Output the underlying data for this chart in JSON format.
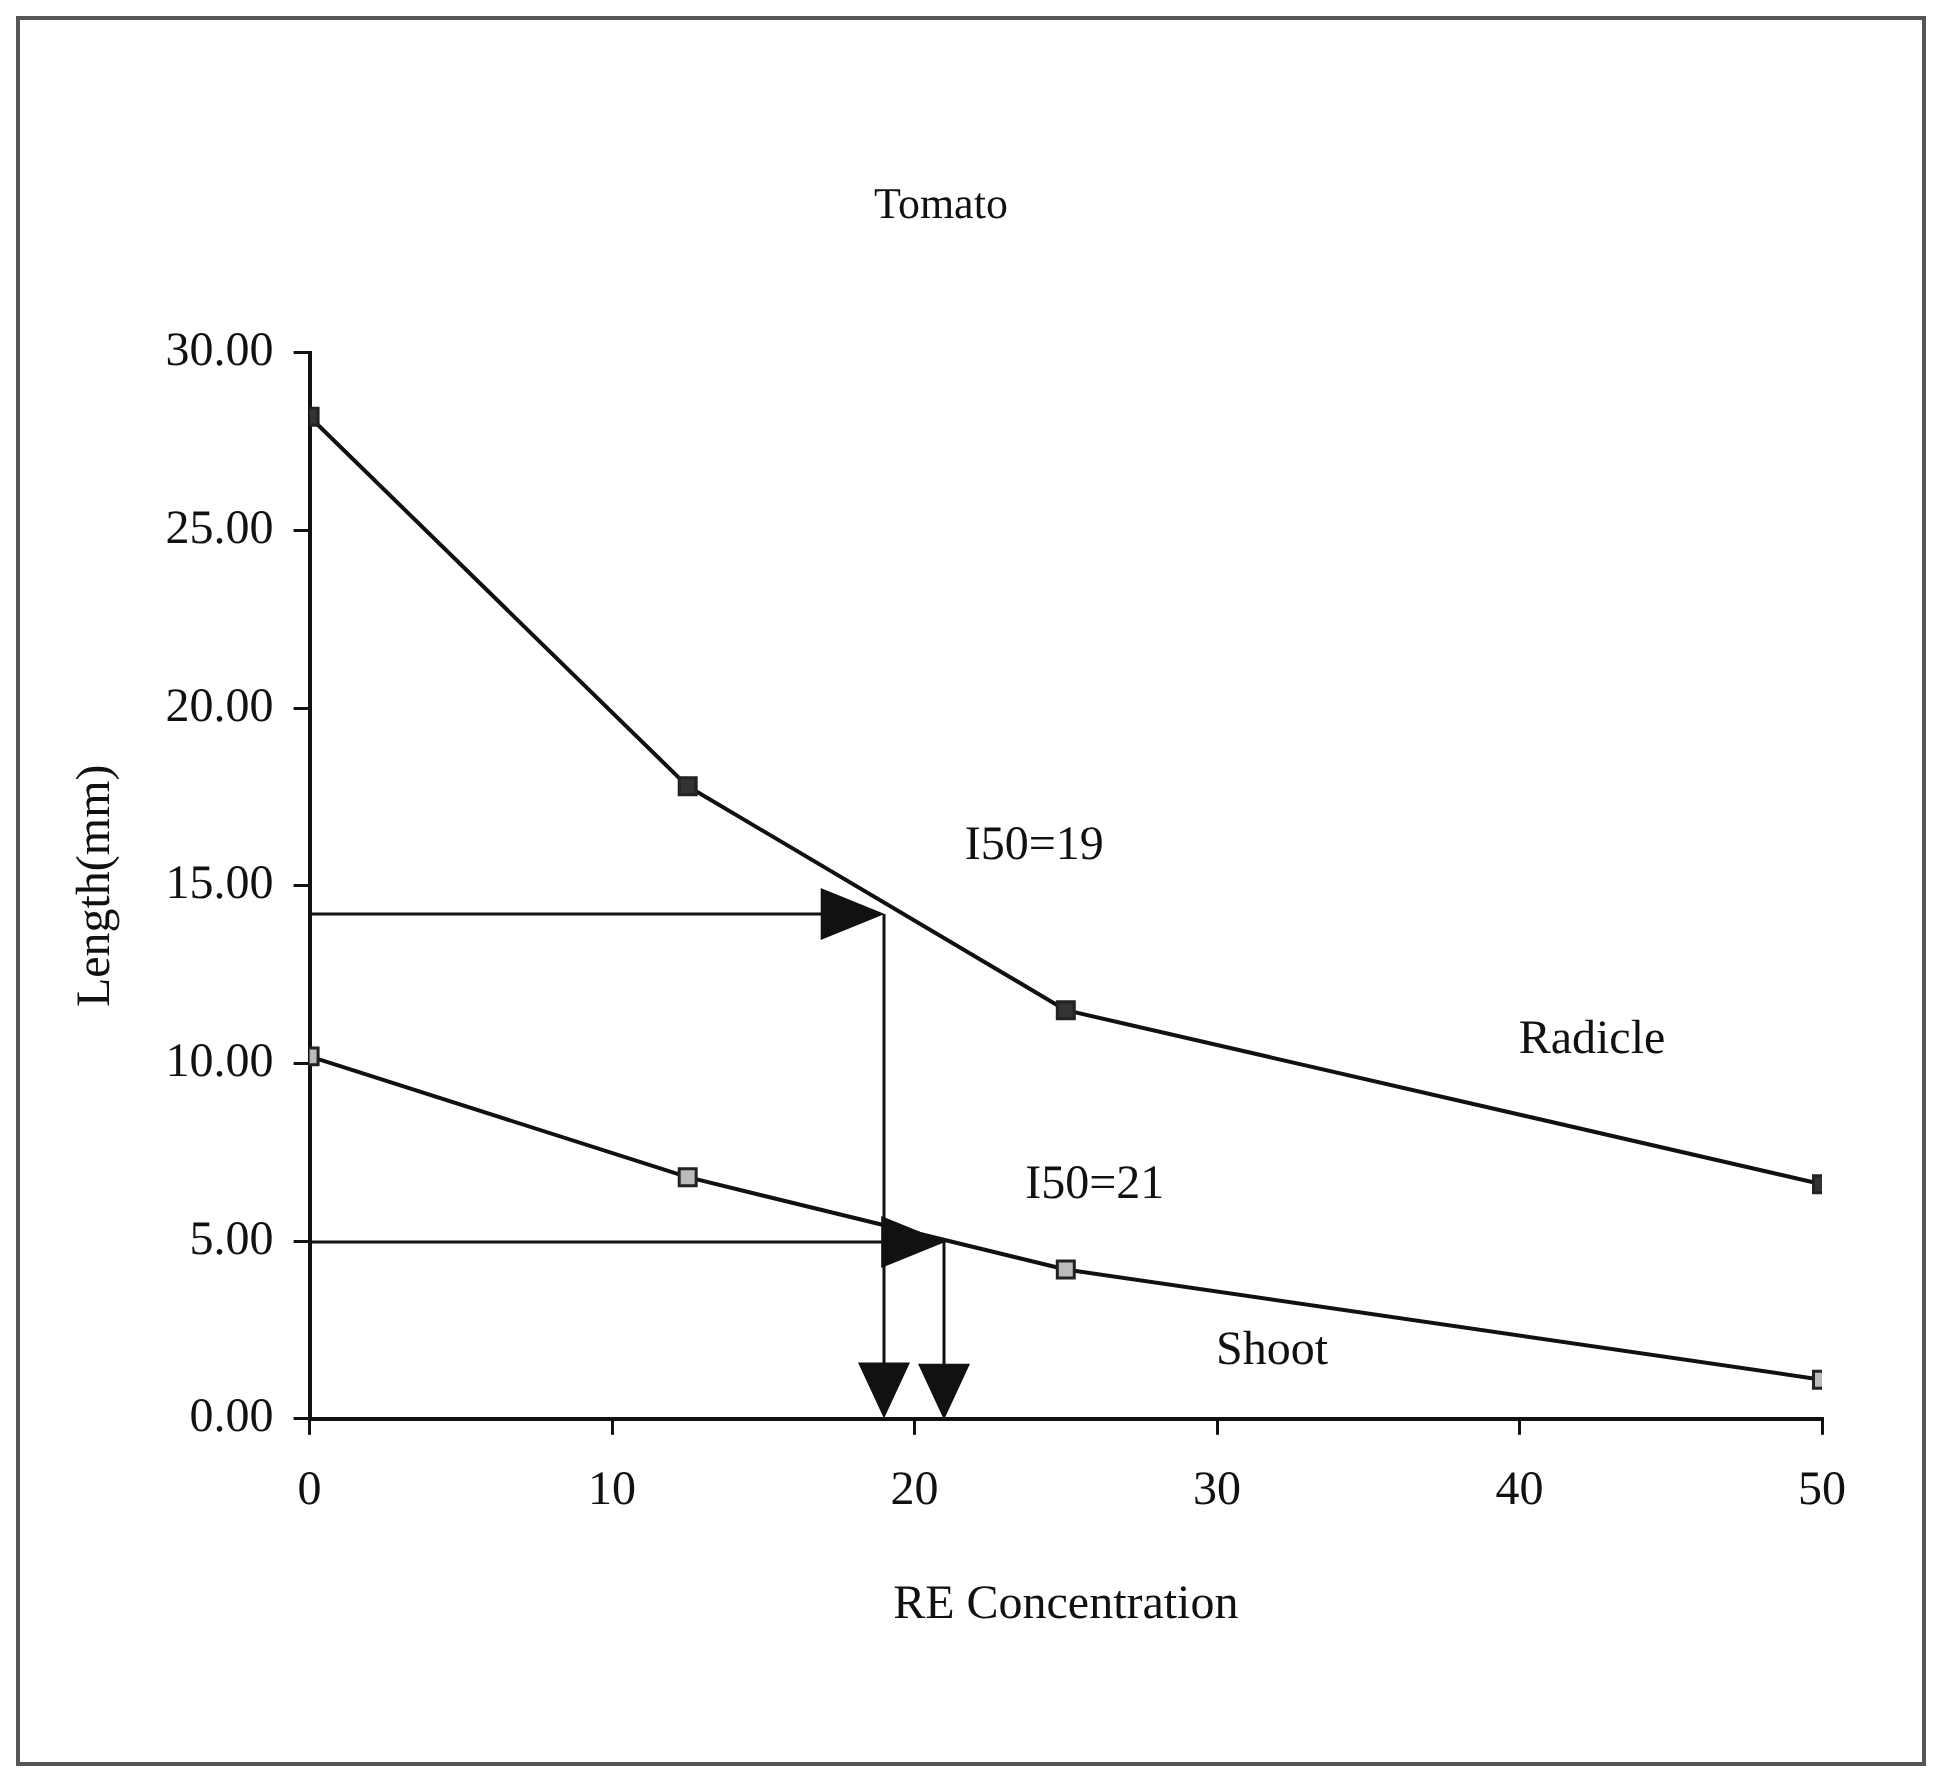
{
  "chart_data": {
    "type": "line",
    "title": "Tomato",
    "xlabel": "RE Concentration",
    "ylabel": "Length(mm)",
    "x": [
      0,
      12.5,
      25,
      50
    ],
    "series": [
      {
        "name": "Radicle",
        "color": "#333333",
        "values": [
          28.2,
          17.8,
          11.5,
          6.6
        ]
      },
      {
        "name": "Shoot",
        "color": "#bbbbbb",
        "values": [
          10.2,
          6.8,
          4.2,
          1.1
        ]
      }
    ],
    "xlim": [
      0,
      50
    ],
    "xticks": [
      0,
      10,
      20,
      30,
      40,
      50
    ],
    "ylim": [
      0,
      30
    ],
    "yticks": [
      {
        "value": 0,
        "label": "0.00"
      },
      {
        "value": 5,
        "label": "5.00"
      },
      {
        "value": 10,
        "label": "10.00"
      },
      {
        "value": 15,
        "label": "15.00"
      },
      {
        "value": 20,
        "label": "20.00"
      },
      {
        "value": 25,
        "label": "25.00"
      },
      {
        "value": 30,
        "label": "30.00"
      }
    ],
    "annotations": [
      {
        "text": "I50=19",
        "x": 19,
        "y": 14.2
      },
      {
        "text": "I50=21",
        "x": 21,
        "y": 5.0
      }
    ],
    "marker": "square",
    "line_style": "solid",
    "grid": false,
    "legend": false
  }
}
